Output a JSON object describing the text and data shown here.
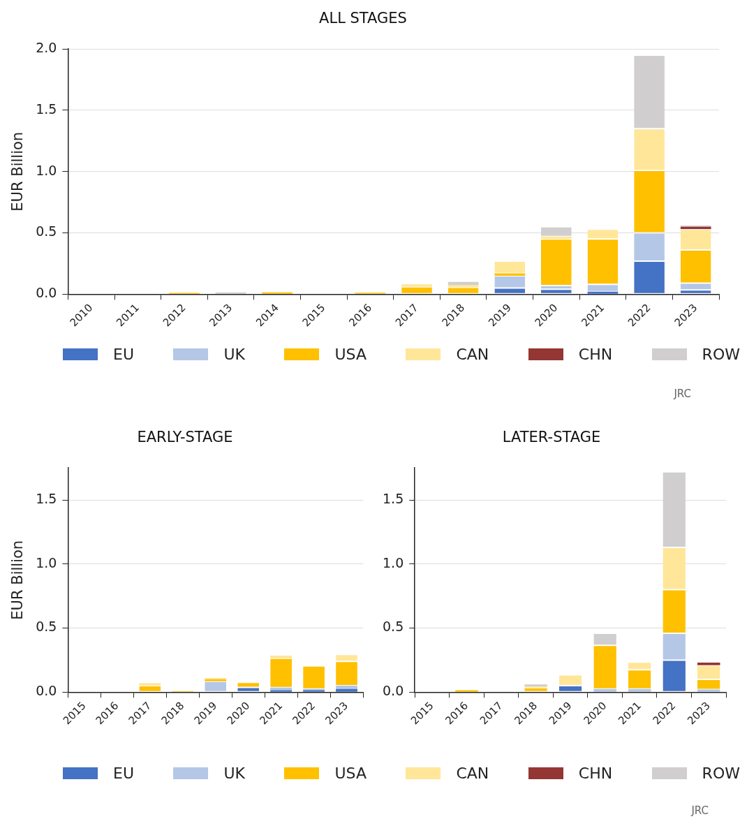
{
  "chart_data": [
    {
      "type": "bar",
      "title": "ALL STAGES",
      "ylabel": "EUR Billion",
      "stacked": true,
      "grid": "y",
      "legend": "bottom",
      "annotations": [
        "JRC"
      ],
      "categories": [
        "2010",
        "2011",
        "2012",
        "2013",
        "2014",
        "2015",
        "2016",
        "2017",
        "2018",
        "2019",
        "2020",
        "2021",
        "2022",
        "2023"
      ],
      "ylim": [
        0,
        2.0
      ],
      "yticks": [
        {
          "value": 0,
          "label": "0.0"
        },
        {
          "value": 0.5,
          "label": "0.5"
        },
        {
          "value": 1,
          "label": "1.0"
        },
        {
          "value": 1.5,
          "label": "1.5"
        },
        {
          "value": 2,
          "label": "2.0"
        }
      ],
      "series": [
        {
          "name": "EU",
          "color": "#4472c4",
          "values": [
            null,
            null,
            null,
            null,
            null,
            null,
            null,
            null,
            null,
            0.05,
            0.04,
            0.02,
            0.27,
            0.035
          ]
        },
        {
          "name": "UK",
          "color": "#b4c7e7",
          "values": [
            null,
            null,
            null,
            null,
            null,
            null,
            null,
            null,
            null,
            0.1,
            0.03,
            0.06,
            0.23,
            0.055
          ]
        },
        {
          "name": "USA",
          "color": "#ffc000",
          "values": [
            null,
            null,
            0.01,
            null,
            0.015,
            null,
            0.01,
            0.06,
            0.055,
            0.02,
            0.38,
            0.37,
            0.51,
            0.27
          ]
        },
        {
          "name": "CAN",
          "color": "#ffe699",
          "values": [
            null,
            null,
            null,
            null,
            null,
            null,
            0.005,
            0.02,
            0.02,
            0.1,
            0.02,
            0.08,
            0.34,
            0.17
          ]
        },
        {
          "name": "CHN",
          "color": "#943634",
          "values": [
            null,
            null,
            null,
            null,
            null,
            null,
            null,
            null,
            null,
            null,
            null,
            null,
            null,
            0.02
          ]
        },
        {
          "name": "ROW",
          "color": "#d0cece",
          "values": [
            null,
            null,
            null,
            0.015,
            null,
            null,
            null,
            null,
            0.025,
            null,
            0.08,
            null,
            0.6,
            0.01
          ]
        }
      ]
    },
    {
      "type": "bar",
      "title": "EARLY-STAGE",
      "ylabel": "EUR Billion",
      "stacked": true,
      "grid": "y",
      "legend": "bottom",
      "annotations": [
        "JRC"
      ],
      "categories": [
        "2015",
        "2016",
        "2017",
        "2018",
        "2019",
        "2020",
        "2021",
        "2022",
        "2023"
      ],
      "ylim": [
        0,
        1.75
      ],
      "yticks": [
        {
          "value": 0,
          "label": "0.0"
        },
        {
          "value": 0.5,
          "label": "0.5"
        },
        {
          "value": 1,
          "label": "1.0"
        },
        {
          "value": 1.5,
          "label": "1.5"
        }
      ],
      "series": [
        {
          "name": "EU",
          "color": "#4472c4",
          "values": [
            null,
            null,
            null,
            null,
            null,
            0.037,
            0.015,
            0.015,
            0.025
          ]
        },
        {
          "name": "UK",
          "color": "#b4c7e7",
          "values": [
            null,
            null,
            null,
            null,
            0.085,
            null,
            0.02,
            0.01,
            0.025
          ]
        },
        {
          "name": "USA",
          "color": "#ffc000",
          "values": [
            null,
            null,
            0.05,
            0.005,
            0.015,
            0.04,
            0.23,
            0.18,
            0.19
          ]
        },
        {
          "name": "CAN",
          "color": "#ffe699",
          "values": [
            null,
            null,
            0.02,
            0.005,
            0.01,
            null,
            0.02,
            null,
            0.055
          ]
        },
        {
          "name": "CHN",
          "color": "#943634",
          "values": [
            null,
            null,
            null,
            null,
            null,
            null,
            null,
            null,
            null
          ]
        },
        {
          "name": "ROW",
          "color": "#d0cece",
          "values": [
            null,
            null,
            null,
            null,
            null,
            null,
            null,
            null,
            null
          ]
        }
      ]
    },
    {
      "type": "bar",
      "title": "LATER-STAGE",
      "stacked": true,
      "grid": "y",
      "categories": [
        "2015",
        "2016",
        "2017",
        "2018",
        "2019",
        "2020",
        "2021",
        "2022",
        "2023"
      ],
      "ylim": [
        0,
        1.75
      ],
      "yticks": [
        {
          "value": 0,
          "label": "0.0"
        },
        {
          "value": 0.5,
          "label": "0.5"
        },
        {
          "value": 1,
          "label": "1.0"
        },
        {
          "value": 1.5,
          "label": "1.5"
        }
      ],
      "series": [
        {
          "color": "#4472c4",
          "values": [
            0.003,
            null,
            null,
            null,
            0.05,
            null,
            null,
            0.25,
            null
          ]
        },
        {
          "color": "#b4c7e7",
          "values": [
            null,
            null,
            null,
            null,
            null,
            0.025,
            0.025,
            0.21,
            0.02
          ]
        },
        {
          "color": "#ffc000",
          "values": [
            null,
            0.015,
            null,
            0.035,
            null,
            0.34,
            0.15,
            0.34,
            0.08
          ]
        },
        {
          "color": "#ffe699",
          "values": [
            null,
            null,
            null,
            0.01,
            0.085,
            null,
            0.06,
            0.33,
            0.11
          ]
        },
        {
          "color": "#943634",
          "values": [
            null,
            null,
            null,
            null,
            null,
            null,
            null,
            null,
            0.02
          ]
        },
        {
          "color": "#d0cece",
          "values": [
            null,
            null,
            null,
            0.015,
            null,
            0.095,
            null,
            0.59,
            null
          ]
        }
      ]
    }
  ]
}
